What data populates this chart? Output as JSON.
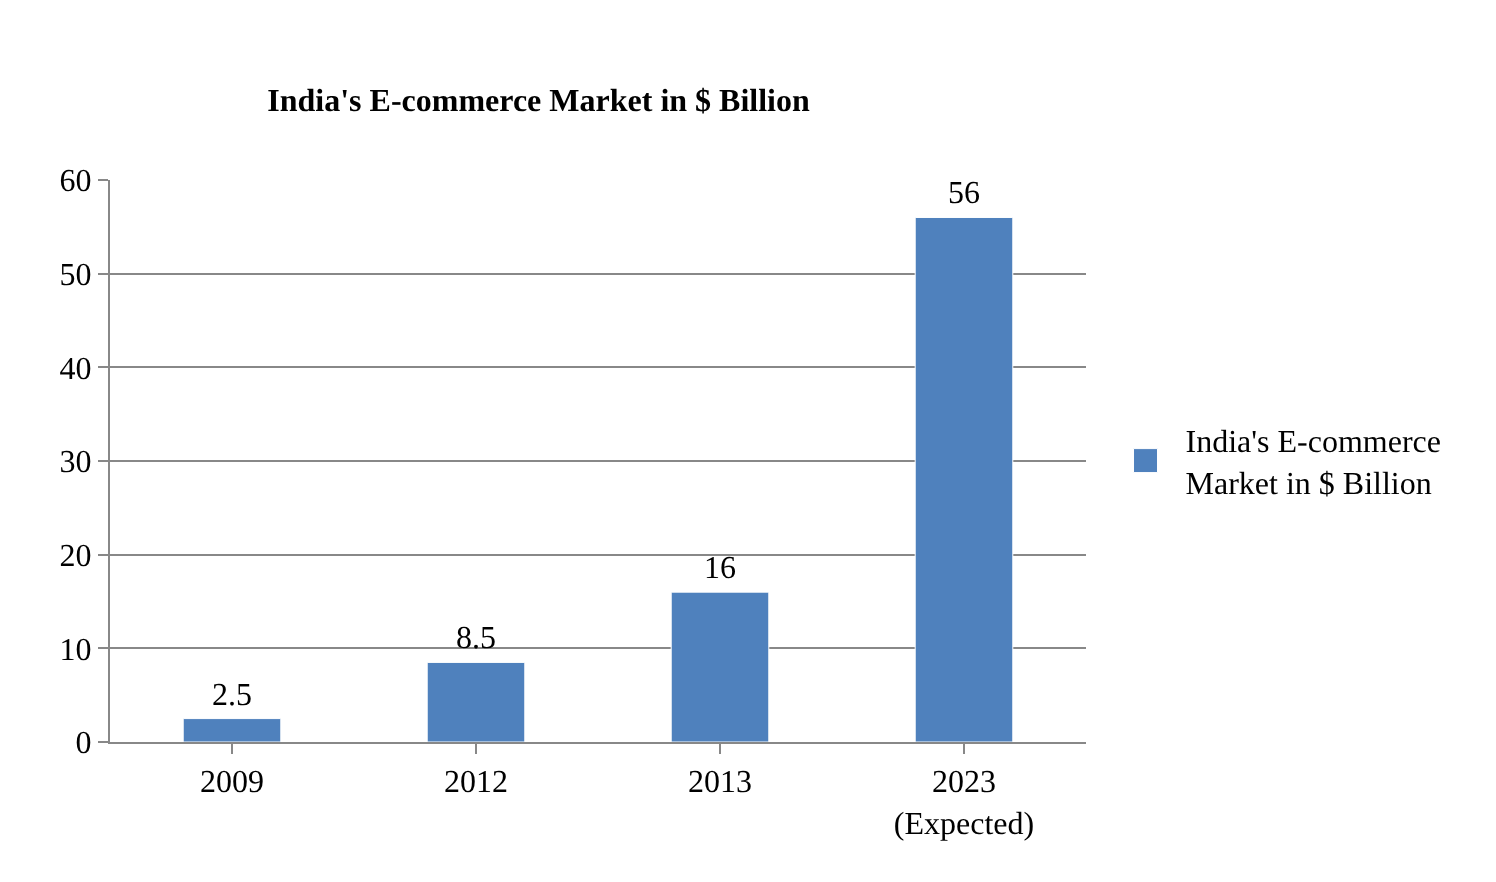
{
  "chart_data": {
    "type": "bar",
    "title": "India's E-commerce Market in $ Billion",
    "categories": [
      "2009",
      "2012",
      "2013",
      "2023\n(Expected)"
    ],
    "series": [
      {
        "name": "India's E-commerce Market in $ Billion",
        "color": "#4f81bd",
        "values": [
          2.5,
          8.5,
          16,
          56
        ]
      }
    ],
    "ylim": [
      0,
      60
    ],
    "yticks": [
      0,
      10,
      20,
      30,
      40,
      50,
      60
    ],
    "grid": "y",
    "legend": "right",
    "data_labels": true
  }
}
